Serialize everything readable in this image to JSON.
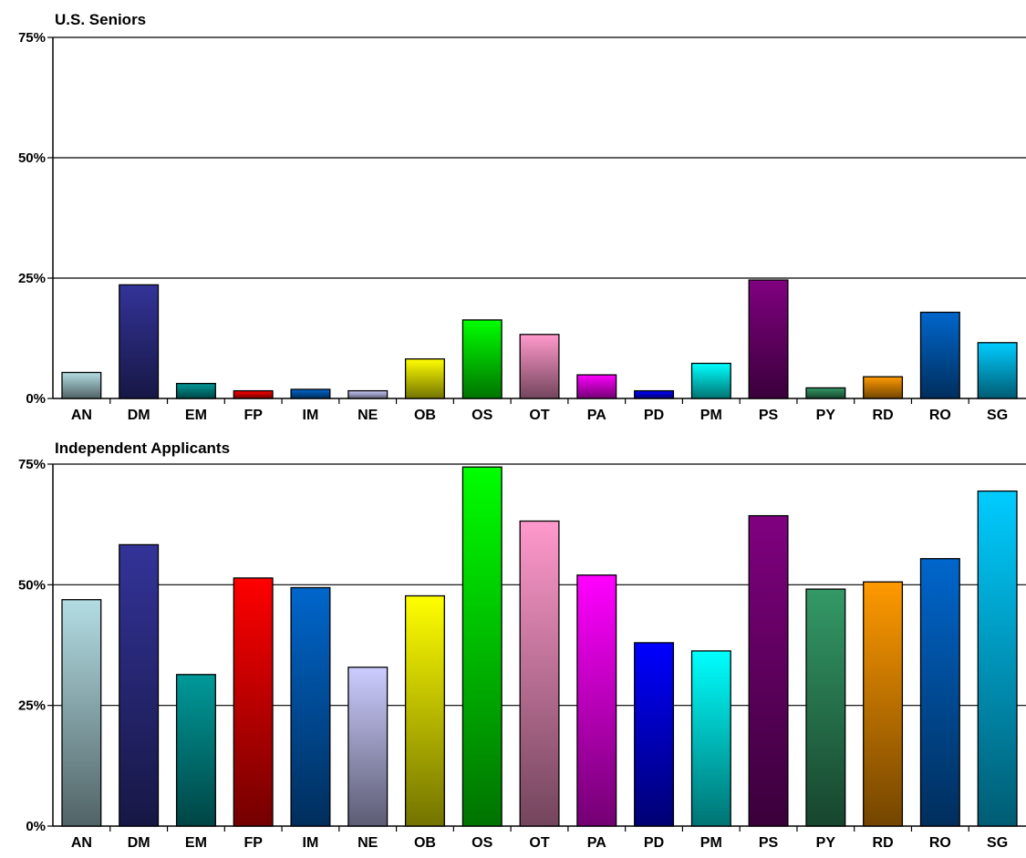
{
  "chart_data": [
    {
      "type": "bar",
      "title": "U.S. Seniors",
      "categories": [
        "AN",
        "DM",
        "EM",
        "FP",
        "IM",
        "NE",
        "OB",
        "OS",
        "OT",
        "PA",
        "PD",
        "PM",
        "PS",
        "PY",
        "RD",
        "RO",
        "SG"
      ],
      "values": [
        5.4,
        23.6,
        3.1,
        1.6,
        1.9,
        1.6,
        8.2,
        16.3,
        13.3,
        4.9,
        1.6,
        7.3,
        24.6,
        2.2,
        4.5,
        17.9,
        11.6
      ],
      "ylim": [
        0,
        75
      ],
      "yticks": [
        0,
        25,
        50,
        75
      ],
      "ytick_labels": [
        "0%",
        "25%",
        "50%",
        "75%"
      ],
      "grid": true,
      "legend": "none"
    },
    {
      "type": "bar",
      "title": "Independent Applicants",
      "categories": [
        "AN",
        "DM",
        "EM",
        "FP",
        "IM",
        "NE",
        "OB",
        "OS",
        "OT",
        "PA",
        "PD",
        "PM",
        "PS",
        "PY",
        "RD",
        "RO",
        "SG"
      ],
      "values": [
        46.9,
        58.3,
        31.4,
        51.4,
        49.4,
        32.9,
        47.7,
        74.4,
        63.2,
        52.0,
        38.0,
        36.3,
        64.3,
        49.1,
        50.6,
        55.4,
        69.4
      ],
      "ylim": [
        0,
        75
      ],
      "yticks": [
        0,
        25,
        50,
        75
      ],
      "ytick_labels": [
        "0%",
        "25%",
        "50%",
        "75%"
      ],
      "grid": true,
      "legend": "none"
    }
  ],
  "colors": {
    "AN": "#b3dde3",
    "DM": "#333399",
    "EM": "#009999",
    "FP": "#ff0000",
    "IM": "#0066cc",
    "NE": "#ccccff",
    "OB": "#ffff00",
    "OS": "#00ff00",
    "OT": "#ff99cc",
    "PA": "#ff00ff",
    "PD": "#0000ff",
    "PM": "#00ffff",
    "PS": "#800080",
    "PY": "#339966",
    "RD": "#ff9900",
    "RO": "#0066cc",
    "SG": "#00ccff"
  }
}
